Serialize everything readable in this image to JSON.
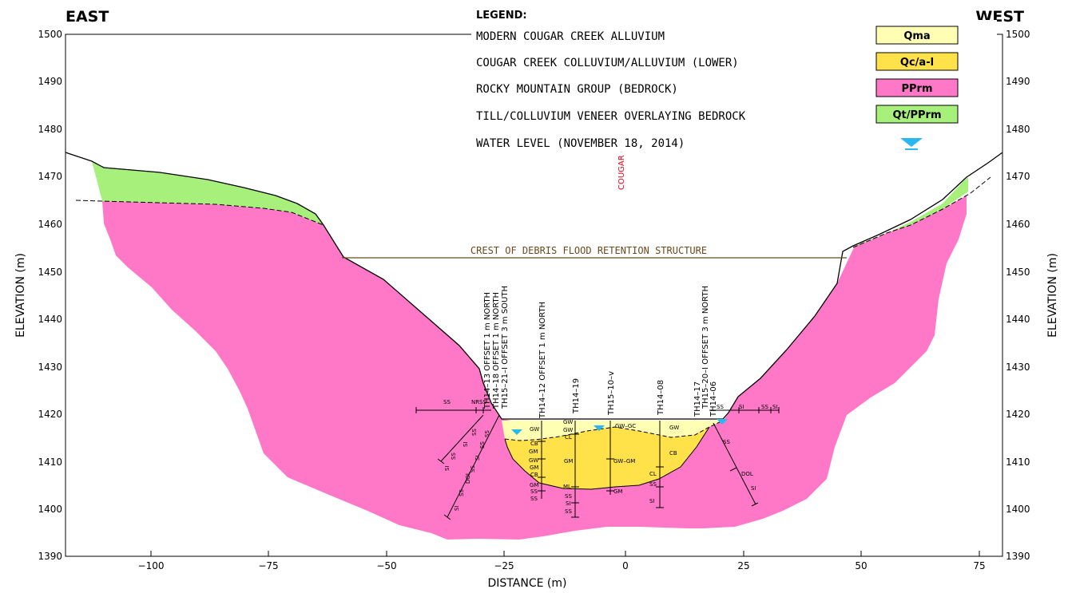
{
  "directions": {
    "left": "EAST",
    "right": "WEST"
  },
  "axes": {
    "x_title": "DISTANCE (m)",
    "y_title_left": "ELEVATION (m)",
    "y_title_right": "ELEVATION (m)",
    "x_ticks": [
      "−100",
      "−75",
      "−50",
      "−25",
      "0",
      "25",
      "50",
      "75"
    ],
    "y_ticks": [
      "1500",
      "1490",
      "1480",
      "1470",
      "1460",
      "1450",
      "1440",
      "1430",
      "1420",
      "1410",
      "1400",
      "1390"
    ]
  },
  "legend": {
    "heading": "LEGEND:",
    "items": [
      {
        "label": "MODERN COUGAR CREEK ALLUVIUM",
        "symbol": "Qma",
        "color": "#ffffb4"
      },
      {
        "label": "COUGAR CREEK COLLUVIUM/ALLUVIUM (LOWER)",
        "symbol": "Qc/a-l",
        "color": "#ffe14a"
      },
      {
        "label": "ROCKY MOUNTAIN GROUP (BEDROCK)",
        "symbol": "PPrm",
        "color": "#ff78c8"
      },
      {
        "label": "TILL/COLLUVIUM VENEER OVERLAYING BEDROCK",
        "symbol": "Qt/PPrm",
        "color": "#a8f07c"
      },
      {
        "label": "WATER LEVEL (NOVEMBER 18, 2014)",
        "symbol": "water-level-icon",
        "color": "#2ab8f0"
      }
    ]
  },
  "crest_label": "CREST OF DEBRIS FLOOD RETENTION STRUCTURE",
  "alignment_label": "COUGAR ( ALIGNM",
  "boreholes": [
    "TH14–13 OFFSET 1 m NORTH",
    "TH14–18 OFFSET 1 m NORTH",
    "TH15–21–I OFFSET 3 m SOUTH",
    "TH14–12 OFFSET 1 m NORTH",
    "TH14–19",
    "TH15–10–v",
    "TH14–08",
    "TH14–17",
    "TH15–20–I OFFSET 3 m NORTH",
    "TH14–06"
  ],
  "soil_codes": {
    "left_row": [
      "SS",
      "NR",
      "SS"
    ],
    "right_row": [
      "SS",
      "SI",
      "SS",
      "SI"
    ],
    "th14_12": [
      "GW",
      "CB",
      "GM",
      "GW",
      "GM",
      "CB",
      "GM",
      "SS",
      "SS"
    ],
    "th14_19": [
      "GW",
      "GW",
      "CL",
      "GM",
      "ML",
      "SS",
      "SI",
      "SS"
    ],
    "th15_10": [
      "GW–GC",
      "GW–GM",
      "GM"
    ],
    "th14_08": [
      "GW",
      "CB",
      "CL",
      "SS",
      "SI"
    ],
    "th14_06": [
      "SS",
      "DOL",
      "SI"
    ],
    "left_incline_a": [
      "SS",
      "SI",
      "SS",
      "SI"
    ],
    "left_incline_b": [
      "SS",
      "SS",
      "SI",
      "SS",
      "DOL",
      "SS",
      "SI"
    ]
  },
  "colors": {
    "qma": "#ffffb4",
    "qca": "#ffe14a",
    "bedrock": "#ff78c8",
    "veneer": "#a8f07c",
    "water": "#2ab8f0",
    "crest": "#6b4a1e",
    "alignment": "#e0001a"
  }
}
